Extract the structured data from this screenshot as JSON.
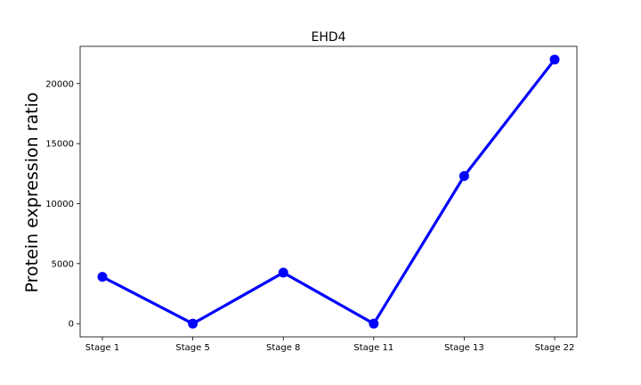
{
  "chart_data": {
    "type": "line",
    "title": "EHD4",
    "xlabel": "",
    "ylabel": "Protein expression ratio",
    "categories": [
      "Stage 1",
      "Stage 5",
      "Stage 8",
      "Stage 11",
      "Stage 13",
      "Stage 22"
    ],
    "series": [
      {
        "values": [
          3900,
          0,
          4250,
          0,
          12300,
          22000
        ]
      }
    ],
    "yticks": [
      0,
      5000,
      10000,
      15000,
      20000
    ],
    "ylim": [
      -1100,
      23100
    ],
    "grid": false,
    "line_color": "#0000ff",
    "marker_color": "#0000ff"
  }
}
